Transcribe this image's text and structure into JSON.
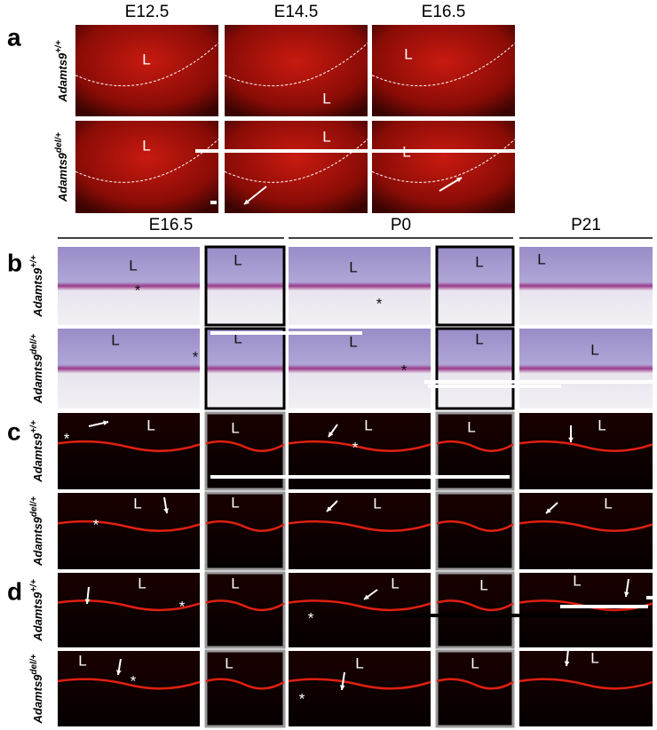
{
  "panel_a": {
    "letter": "a",
    "columns": [
      "E12.5",
      "E14.5",
      "E16.5"
    ],
    "rows": [
      {
        "gene": "Adamts9",
        "genotype": "+/+"
      },
      {
        "gene": "Adamts9",
        "genotype": "del/+"
      }
    ],
    "cell_labels": [
      "L",
      "L",
      "L",
      "L",
      "L",
      "L"
    ]
  },
  "panel_b": {
    "letter": "b",
    "columns": [
      "E16.5",
      "P0",
      "P21"
    ],
    "rows": [
      {
        "gene": "Adamts9",
        "genotype": "+/+"
      },
      {
        "gene": "Adamts9",
        "genotype": "del/+"
      }
    ],
    "cell_labels": [
      "L",
      "*",
      "L",
      "L",
      "*",
      "L",
      "L",
      "L",
      "*",
      "L",
      "L",
      "*",
      "L",
      "L"
    ]
  },
  "panel_c": {
    "letter": "c",
    "rows": [
      {
        "gene": "Adamts9",
        "genotype": "+/+"
      },
      {
        "gene": "Adamts9",
        "genotype": "del/+"
      }
    ],
    "cell_labels": [
      "L",
      "*",
      "L",
      "L",
      "*",
      "L",
      "L",
      "L",
      "*",
      "L",
      "L",
      "L"
    ]
  },
  "panel_d": {
    "letter": "d",
    "rows": [
      {
        "gene": "Adamts9",
        "genotype": "+/+"
      },
      {
        "gene": "Adamts9",
        "genotype": "del/+"
      }
    ],
    "cell_labels": [
      "L",
      "*",
      "L",
      "L",
      "*",
      "L",
      "L",
      "L",
      "*",
      "L",
      "L",
      "*",
      "L",
      "L"
    ]
  }
}
